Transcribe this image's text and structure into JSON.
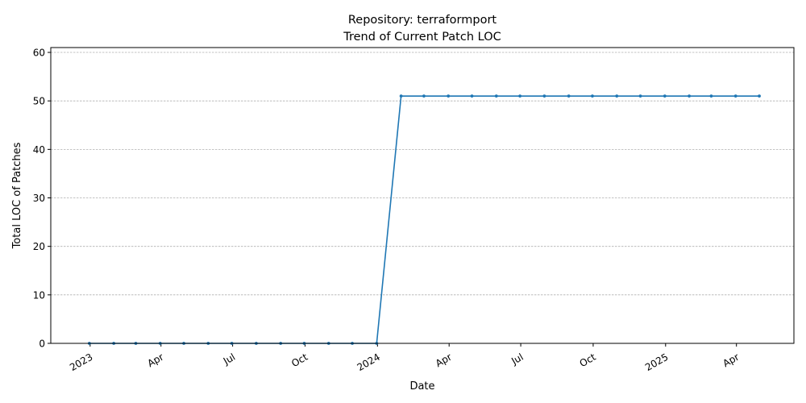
{
  "chart_data": {
    "type": "line",
    "title_lines": [
      "Repository: terraformport",
      "Trend of Current Patch LOC"
    ],
    "xlabel": "Date",
    "ylabel": "Total LOC of Patches",
    "ylim": [
      0,
      61
    ],
    "xlim": [
      "2022-11-12",
      "2025-06-13"
    ],
    "yticks": [
      0,
      10,
      20,
      30,
      40,
      50,
      60
    ],
    "xticks": [
      {
        "date": "2023-01-01",
        "label": "2023"
      },
      {
        "date": "2023-04-01",
        "label": "Apr"
      },
      {
        "date": "2023-07-01",
        "label": "Jul"
      },
      {
        "date": "2023-10-01",
        "label": "Oct"
      },
      {
        "date": "2024-01-01",
        "label": "2024"
      },
      {
        "date": "2024-04-01",
        "label": "Apr"
      },
      {
        "date": "2024-07-01",
        "label": "Jul"
      },
      {
        "date": "2024-10-01",
        "label": "Oct"
      },
      {
        "date": "2025-01-01",
        "label": "2025"
      },
      {
        "date": "2025-04-01",
        "label": "Apr"
      }
    ],
    "grid": "horizontal dashed",
    "series": [
      {
        "color": "#1f77b4",
        "x": [
          "2022-12-31",
          "2023-01-31",
          "2023-02-28",
          "2023-03-31",
          "2023-04-30",
          "2023-05-31",
          "2023-06-30",
          "2023-07-31",
          "2023-08-31",
          "2023-09-30",
          "2023-10-31",
          "2023-11-30",
          "2023-12-31",
          "2024-01-31",
          "2024-02-29",
          "2024-03-31",
          "2024-04-30",
          "2024-05-31",
          "2024-06-30",
          "2024-07-31",
          "2024-08-31",
          "2024-09-30",
          "2024-10-31",
          "2024-11-30",
          "2024-12-31",
          "2025-01-31",
          "2025-02-28",
          "2025-03-31",
          "2025-04-30"
        ],
        "values": [
          0,
          0,
          0,
          0,
          0,
          0,
          0,
          0,
          0,
          0,
          0,
          0,
          0,
          51,
          51,
          51,
          51,
          51,
          51,
          51,
          51,
          51,
          51,
          51,
          51,
          51,
          51,
          51,
          51
        ]
      }
    ]
  }
}
